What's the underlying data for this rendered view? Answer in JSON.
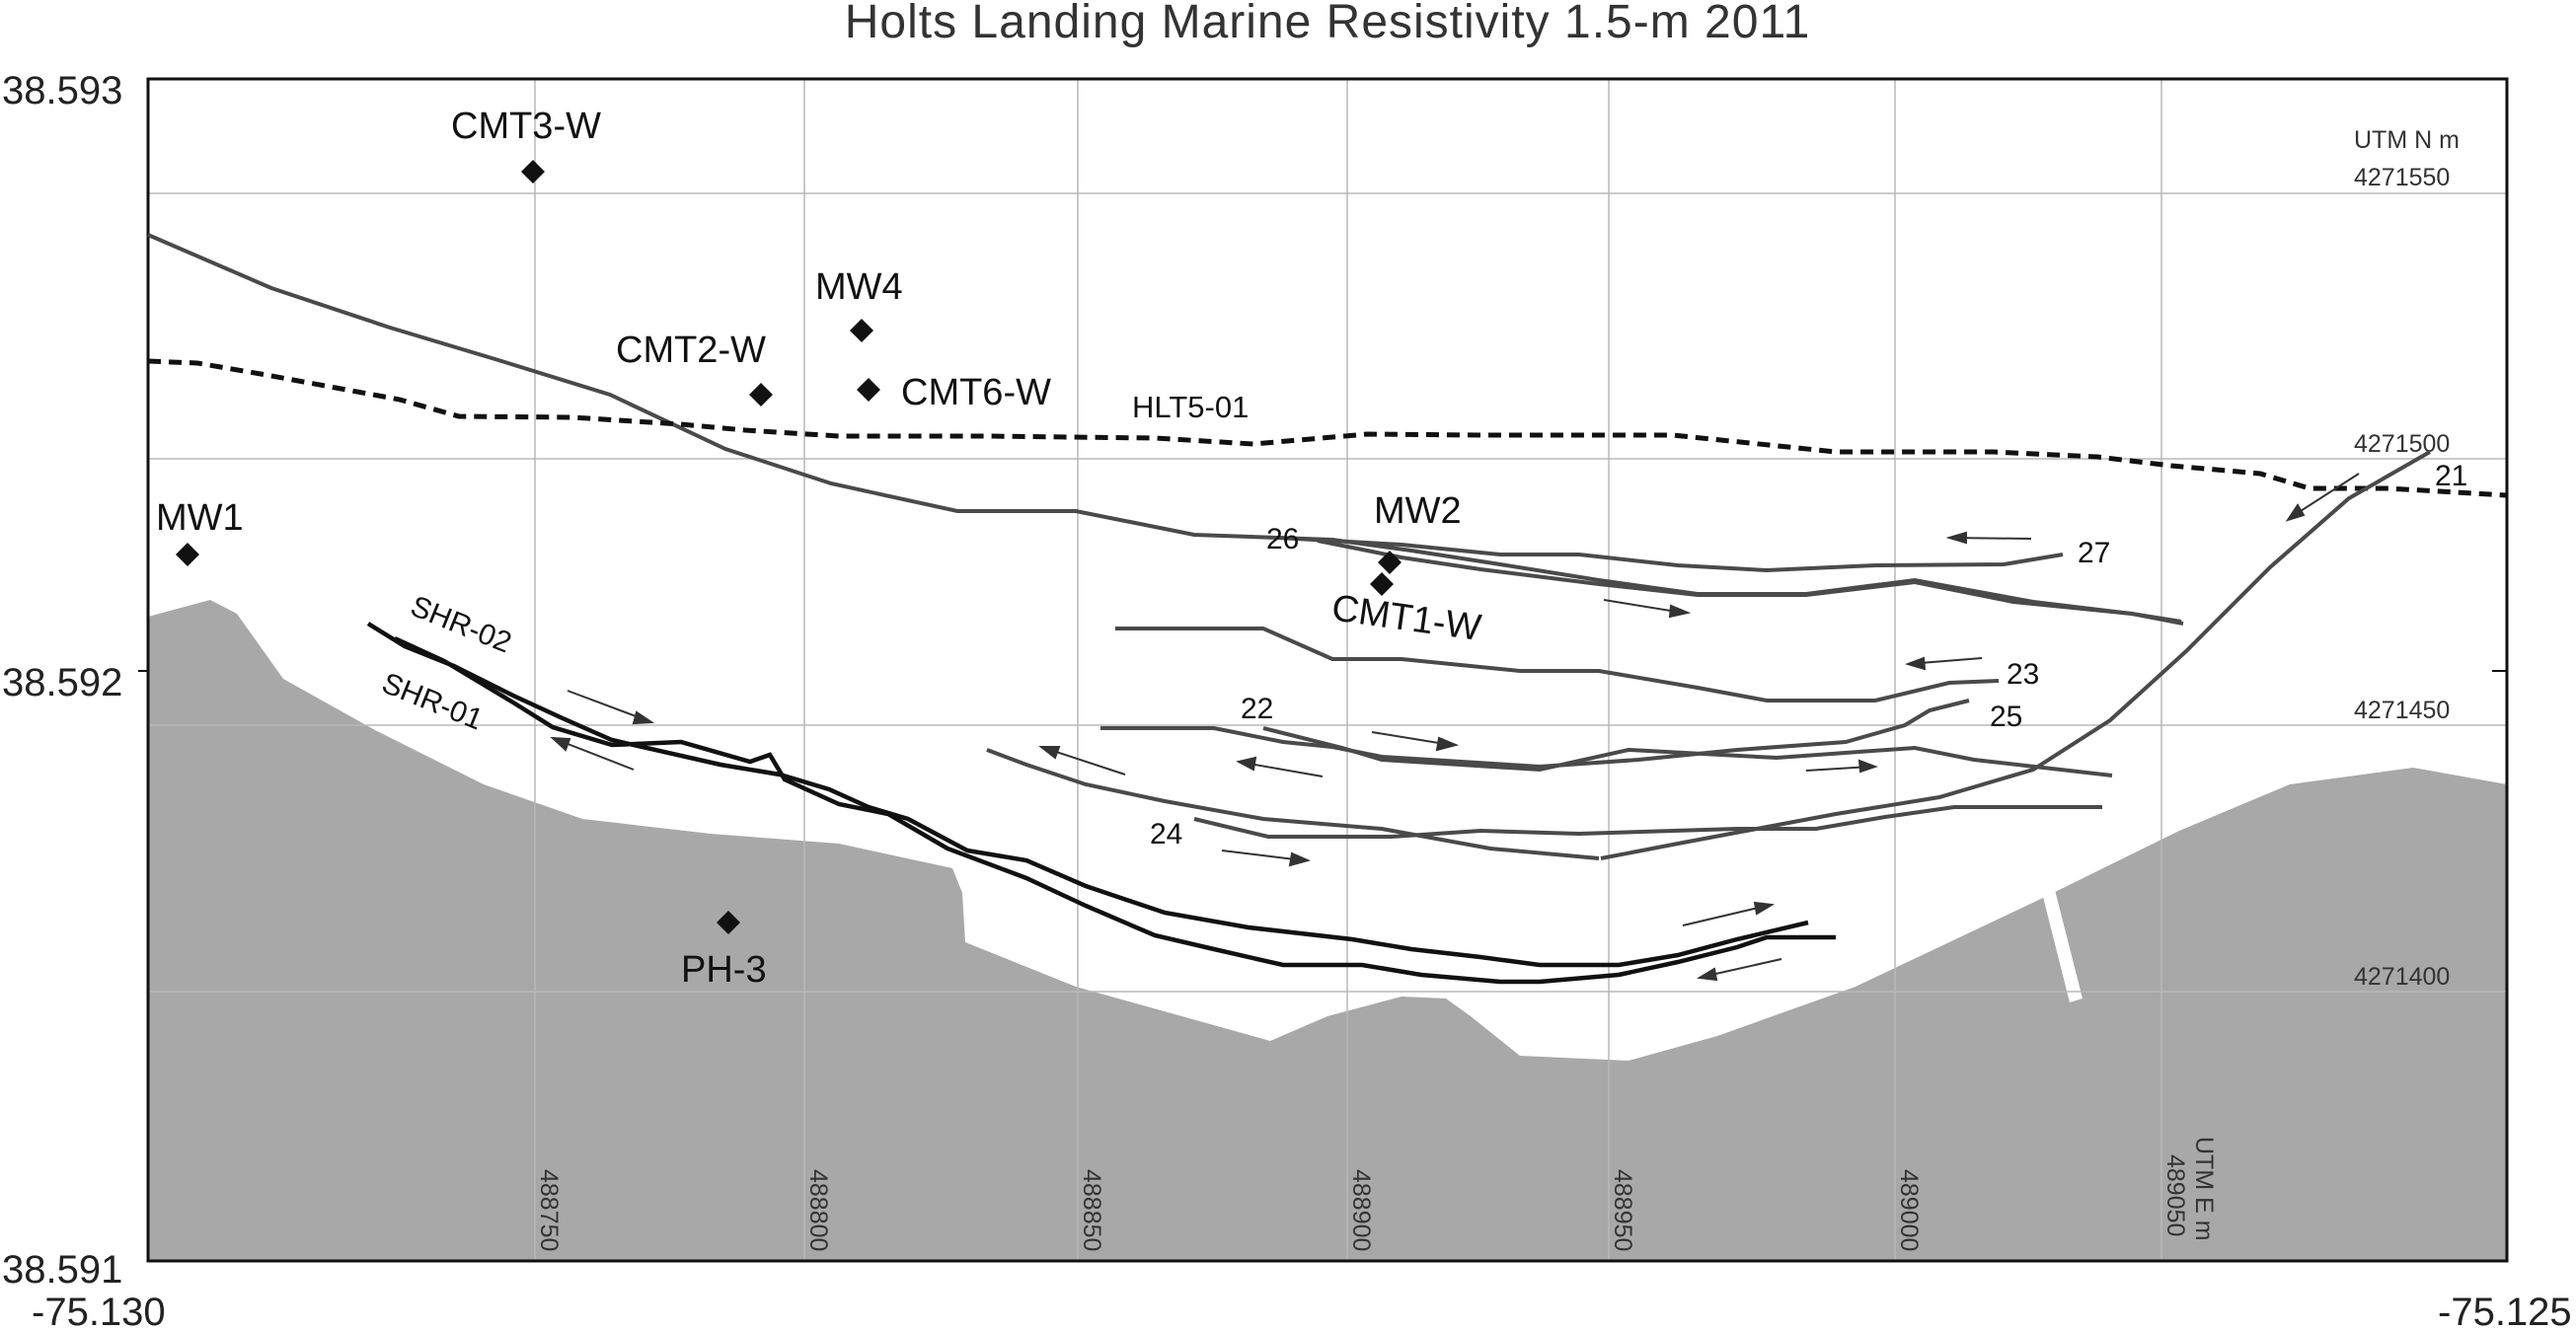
{
  "title": "Holts Landing Marine Resistivity  1.5-m  2011",
  "corners": {
    "lat_top": "38.593",
    "lat_mid": "38.592",
    "lat_bottom": "38.591",
    "lon_left": "-75.130",
    "lon_right": "-75.125"
  },
  "utm_n": {
    "unit": "UTM N m",
    "labels": [
      "4271550",
      "4271500",
      "4271450",
      "4271400"
    ]
  },
  "utm_e": {
    "unit": "UTM E m",
    "labels": [
      "488750",
      "488800",
      "488850",
      "488900",
      "488950",
      "489000",
      "489050"
    ]
  },
  "stations": [
    {
      "name": "CMT3-W"
    },
    {
      "name": "MW4"
    },
    {
      "name": "CMT2-W"
    },
    {
      "name": "CMT6-W"
    },
    {
      "name": "MW1"
    },
    {
      "name": "MW2"
    },
    {
      "name": "CMT1-W"
    },
    {
      "name": "PH-3"
    }
  ],
  "lines": {
    "hlt": "HLT5-01",
    "shr02": "SHR-02",
    "shr01": "SHR-01",
    "profiles": [
      "21",
      "22",
      "23",
      "24",
      "25",
      "26",
      "27"
    ]
  },
  "colors": {
    "land": "#a8a8a8",
    "water": "#ffffff",
    "grid": "#b8b8b8",
    "track": "#4a4a4a",
    "shoreline_track": "#111111",
    "marker": "#111111"
  }
}
